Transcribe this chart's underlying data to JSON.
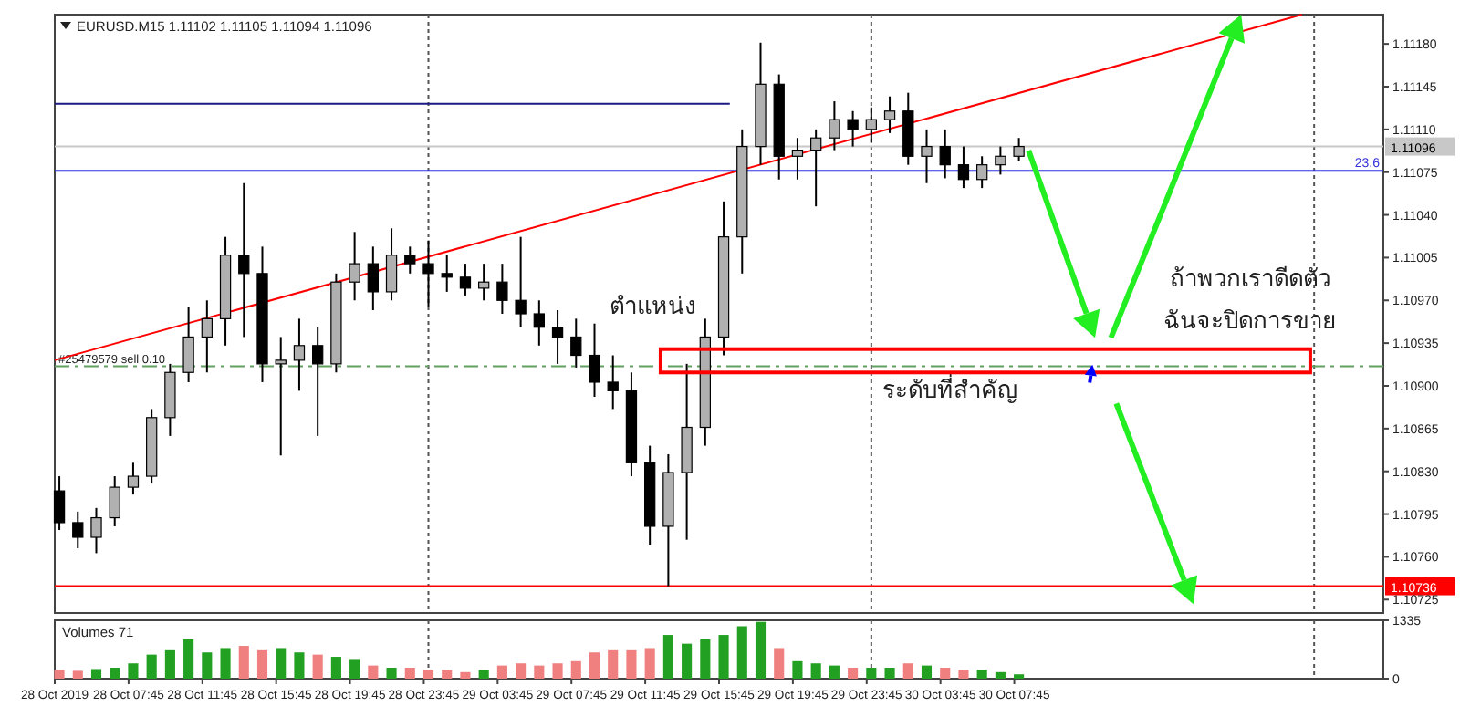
{
  "chart_data": [
    {
      "type": "candlestick",
      "title": "EURUSD.M15  1.11102 1.11105 1.11094 1.11096",
      "x": [
        "2019-10-28T04:00",
        "2019-10-28T05:00",
        "2019-10-28T06:00",
        "2019-10-28T07:00",
        "2019-10-28T08:00",
        "2019-10-28T09:00",
        "2019-10-28T10:00",
        "2019-10-28T11:00",
        "2019-10-28T12:00",
        "2019-10-28T13:00",
        "2019-10-28T14:00",
        "2019-10-28T15:00",
        "2019-10-28T16:00",
        "2019-10-28T17:00",
        "2019-10-28T18:00",
        "2019-10-28T19:00",
        "2019-10-28T20:00",
        "2019-10-28T21:00",
        "2019-10-28T22:00",
        "2019-10-28T23:00",
        "2019-10-29T00:00",
        "2019-10-29T01:00",
        "2019-10-29T02:00",
        "2019-10-29T03:00",
        "2019-10-29T04:00",
        "2019-10-29T05:00",
        "2019-10-29T06:00",
        "2019-10-29T07:00",
        "2019-10-29T08:00",
        "2019-10-29T09:00",
        "2019-10-29T10:00",
        "2019-10-29T11:00",
        "2019-10-29T12:00",
        "2019-10-29T13:00",
        "2019-10-29T14:00",
        "2019-10-29T15:00",
        "2019-10-29T16:00",
        "2019-10-29T17:00",
        "2019-10-29T18:00",
        "2019-10-29T19:00",
        "2019-10-29T20:00",
        "2019-10-29T21:00",
        "2019-10-29T22:00",
        "2019-10-29T23:00",
        "2019-10-30T00:00",
        "2019-10-30T01:00",
        "2019-10-30T02:00",
        "2019-10-30T03:00",
        "2019-10-30T04:00",
        "2019-10-30T05:00",
        "2019-10-30T06:00",
        "2019-10-30T07:00",
        "2019-10-30T08:00"
      ],
      "ohlc": [
        [
          1.10814,
          1.10826,
          1.10782,
          1.10788
        ],
        [
          1.10788,
          1.10797,
          1.10767,
          1.10776
        ],
        [
          1.10776,
          1.108,
          1.10763,
          1.10792
        ],
        [
          1.10792,
          1.10826,
          1.10785,
          1.10817
        ],
        [
          1.10817,
          1.10837,
          1.10811,
          1.10826
        ],
        [
          1.10826,
          1.10881,
          1.1082,
          1.10874
        ],
        [
          1.10874,
          1.10918,
          1.10859,
          1.10911
        ],
        [
          1.10911,
          1.10965,
          1.10903,
          1.1094
        ],
        [
          1.1094,
          1.1097,
          1.10911,
          1.10955
        ],
        [
          1.10955,
          1.11022,
          1.10933,
          1.11007
        ],
        [
          1.11007,
          1.11066,
          1.1094,
          1.10992
        ],
        [
          1.10992,
          1.11014,
          1.10903,
          1.10918
        ],
        [
          1.10918,
          1.1094,
          1.10843,
          1.10921
        ],
        [
          1.10921,
          1.10955,
          1.10896,
          1.10933
        ],
        [
          1.10933,
          1.10948,
          1.10859,
          1.10918
        ],
        [
          1.10918,
          1.10992,
          1.10911,
          1.10985
        ],
        [
          1.10985,
          1.11026,
          1.1097,
          1.11
        ],
        [
          1.11,
          1.11014,
          1.10962,
          1.10977
        ],
        [
          1.10977,
          1.11029,
          1.1097,
          1.11007
        ],
        [
          1.11007,
          1.11014,
          1.10992,
          1.11
        ],
        [
          1.11,
          1.11019,
          1.10965,
          1.10992
        ],
        [
          1.10992,
          1.11007,
          1.10977,
          1.10989
        ],
        [
          1.10989,
          1.11,
          1.10974,
          1.1098
        ],
        [
          1.1098,
          1.11,
          1.1097,
          1.10985
        ],
        [
          1.10985,
          1.11,
          1.10959,
          1.1097
        ],
        [
          1.1097,
          1.11022,
          1.10948,
          1.10959
        ],
        [
          1.10959,
          1.1097,
          1.10933,
          1.10948
        ],
        [
          1.10948,
          1.10962,
          1.10918,
          1.1094
        ],
        [
          1.1094,
          1.10955,
          1.10915,
          1.10925
        ],
        [
          1.10925,
          1.10951,
          1.10891,
          1.10903
        ],
        [
          1.10903,
          1.10925,
          1.10881,
          1.10896
        ],
        [
          1.10896,
          1.10911,
          1.10826,
          1.10837
        ],
        [
          1.10837,
          1.10851,
          1.1077,
          1.10785
        ],
        [
          1.10785,
          1.10844,
          1.10736,
          1.10829
        ],
        [
          1.10829,
          1.10918,
          1.10774,
          1.10866
        ],
        [
          1.10866,
          1.10955,
          1.10851,
          1.1094
        ],
        [
          1.1094,
          1.11051,
          1.10925,
          1.11022
        ],
        [
          1.11022,
          1.1111,
          1.10992,
          1.11096
        ],
        [
          1.11096,
          1.11181,
          1.11081,
          1.11147
        ],
        [
          1.11147,
          1.11155,
          1.11069,
          1.11088
        ],
        [
          1.11088,
          1.11103,
          1.11069,
          1.11093
        ],
        [
          1.11093,
          1.1111,
          1.11047,
          1.11103
        ],
        [
          1.11103,
          1.11133,
          1.11093,
          1.11118
        ],
        [
          1.11118,
          1.11125,
          1.11096,
          1.1111
        ],
        [
          1.1111,
          1.11128,
          1.11099,
          1.11118
        ],
        [
          1.11118,
          1.11137,
          1.11107,
          1.11125
        ],
        [
          1.11125,
          1.1114,
          1.11081,
          1.11088
        ],
        [
          1.11088,
          1.1111,
          1.11066,
          1.11096
        ],
        [
          1.11096,
          1.1111,
          1.1107,
          1.11081
        ],
        [
          1.11081,
          1.11096,
          1.11062,
          1.11069
        ],
        [
          1.11069,
          1.11088,
          1.11062,
          1.11081
        ],
        [
          1.11081,
          1.11096,
          1.11073,
          1.11088
        ],
        [
          1.11088,
          1.11103,
          1.11084,
          1.11096
        ]
      ],
      "series": [
        {
          "type": "line",
          "color": "#ff0000",
          "x": [
            "2019-10-28T03:45",
            "2019-10-30T23:20"
          ],
          "values": [
            1.10921,
            1.11204
          ]
        },
        {
          "type": "line",
          "color": "#1a1a80",
          "x": [
            "2019-10-28T03:45",
            "2019-10-29T16:20"
          ],
          "values": [
            1.11131,
            1.11131
          ]
        }
      ],
      "xlim": [
        "2019-10-28T03:45",
        "2019-10-31T03:45"
      ],
      "ylim": [
        1.10714,
        1.11204
      ],
      "yticks": [
        {
          "value": 1.1118,
          "label": "1.11180"
        },
        {
          "value": 1.11145,
          "label": "1.11145"
        },
        {
          "value": 1.1111,
          "label": "1.11110"
        },
        {
          "value": 1.11075,
          "label": "1.11075"
        },
        {
          "value": 1.1104,
          "label": "1.11040"
        },
        {
          "value": 1.11005,
          "label": "1.11005"
        },
        {
          "value": 1.1097,
          "label": "1.10970"
        },
        {
          "value": 1.10935,
          "label": "1.10935"
        },
        {
          "value": 1.109,
          "label": "1.10900"
        },
        {
          "value": 1.10865,
          "label": "1.10865"
        },
        {
          "value": 1.1083,
          "label": "1.10830"
        },
        {
          "value": 1.10795,
          "label": "1.10795"
        },
        {
          "value": 1.1076,
          "label": "1.10760"
        },
        {
          "value": 1.10725,
          "label": "1.10725"
        }
      ],
      "tick_labels": "y",
      "ref_lines": [
        {
          "axis": "x",
          "value": "2019-10-29T00:00",
          "color": "#555555",
          "line_style": "dotted"
        },
        {
          "axis": "x",
          "value": "2019-10-30T00:00",
          "color": "#555555",
          "line_style": "dotted"
        },
        {
          "axis": "x",
          "value": "2019-10-31T00:00",
          "color": "#555555",
          "line_style": "dotted"
        },
        {
          "axis": "y",
          "value": 1.11096,
          "label": "1.11096",
          "color": "#c8c8c8",
          "line_style": "solid"
        },
        {
          "axis": "y",
          "value": 1.11076,
          "color": "#3333dd",
          "line_style": "solid"
        },
        {
          "axis": "y",
          "value": 1.10736,
          "label": "1.10736",
          "color": "#ff0000",
          "line_style": "solid"
        },
        {
          "axis": "y",
          "value": 1.10916,
          "label": "#25479579 sell 0.10",
          "color": "#60a060",
          "line_style": "dashed"
        }
      ],
      "annotations": [
        "ตำแหน่ง",
        "ระดับที่สำคัญ",
        "ถ้าพวกเราดีดตัว",
        "ฉันจะปิดการขาย",
        {
          "text": "23.6",
          "x": "2019-10-31T03:45",
          "y": 1.11076
        }
      ]
    },
    {
      "type": "bar",
      "title": "Volumes 71",
      "x": [
        "2019-10-28T04:00",
        "2019-10-28T05:00",
        "2019-10-28T06:00",
        "2019-10-28T07:00",
        "2019-10-28T08:00",
        "2019-10-28T09:00",
        "2019-10-28T10:00",
        "2019-10-28T11:00",
        "2019-10-28T12:00",
        "2019-10-28T13:00",
        "2019-10-28T14:00",
        "2019-10-28T15:00",
        "2019-10-28T16:00",
        "2019-10-28T17:00",
        "2019-10-28T18:00",
        "2019-10-28T19:00",
        "2019-10-28T20:00",
        "2019-10-28T21:00",
        "2019-10-28T22:00",
        "2019-10-28T23:00",
        "2019-10-29T00:00",
        "2019-10-29T01:00",
        "2019-10-29T02:00",
        "2019-10-29T03:00",
        "2019-10-29T04:00",
        "2019-10-29T05:00",
        "2019-10-29T06:00",
        "2019-10-29T07:00",
        "2019-10-29T08:00",
        "2019-10-29T09:00",
        "2019-10-29T10:00",
        "2019-10-29T11:00",
        "2019-10-29T12:00",
        "2019-10-29T13:00",
        "2019-10-29T14:00",
        "2019-10-29T15:00",
        "2019-10-29T16:00",
        "2019-10-29T17:00",
        "2019-10-29T18:00",
        "2019-10-29T19:00",
        "2019-10-29T20:00",
        "2019-10-29T21:00",
        "2019-10-29T22:00",
        "2019-10-29T23:00",
        "2019-10-30T00:00",
        "2019-10-30T01:00",
        "2019-10-30T02:00",
        "2019-10-30T03:00",
        "2019-10-30T04:00",
        "2019-10-30T05:00",
        "2019-10-30T06:00",
        "2019-10-30T07:00",
        "2019-10-30T08:00"
      ],
      "values": [
        200,
        180,
        220,
        250,
        350,
        550,
        650,
        900,
        600,
        700,
        750,
        650,
        700,
        600,
        550,
        500,
        450,
        300,
        250,
        250,
        200,
        200,
        150,
        200,
        300,
        350,
        300,
        350,
        400,
        600,
        650,
        650,
        700,
        1000,
        800,
        900,
        1000,
        1200,
        1300,
        700,
        400,
        350,
        300,
        250,
        250,
        250,
        350,
        300,
        250,
        200,
        200,
        150,
        100
      ],
      "colors": [
        "#f08080",
        "#f08080",
        "#22a022",
        "#22a022",
        "#22a022",
        "#22a022",
        "#22a022",
        "#22a022",
        "#22a022",
        "#22a022",
        "#f08080",
        "#f08080",
        "#22a022",
        "#22a022",
        "#f08080",
        "#22a022",
        "#22a022",
        "#f08080",
        "#22a022",
        "#f08080",
        "#f08080",
        "#f08080",
        "#f08080",
        "#22a022",
        "#f08080",
        "#f08080",
        "#f08080",
        "#f08080",
        "#f08080",
        "#f08080",
        "#f08080",
        "#f08080",
        "#f08080",
        "#22a022",
        "#22a022",
        "#22a022",
        "#22a022",
        "#22a022",
        "#22a022",
        "#f08080",
        "#22a022",
        "#22a022",
        "#22a022",
        "#f08080",
        "#22a022",
        "#22a022",
        "#f08080",
        "#22a022",
        "#f08080",
        "#f08080",
        "#22a022",
        "#22a022",
        "#22a022"
      ],
      "xlim": [
        "2019-10-28T03:45",
        "2019-10-31T03:45"
      ],
      "ylim": [
        0,
        1335
      ],
      "yticks": [
        0,
        1335
      ],
      "xticks": [
        {
          "value": "2019-10-28T03:45",
          "label": "28 Oct 2019"
        },
        {
          "value": "2019-10-28T07:45",
          "label": "28 Oct 07:45"
        },
        {
          "value": "2019-10-28T11:45",
          "label": "28 Oct 11:45"
        },
        {
          "value": "2019-10-28T15:45",
          "label": "28 Oct 15:45"
        },
        {
          "value": "2019-10-28T19:45",
          "label": "28 Oct 19:45"
        },
        {
          "value": "2019-10-28T23:45",
          "label": "28 Oct 23:45"
        },
        {
          "value": "2019-10-29T03:45",
          "label": "29 Oct 03:45"
        },
        {
          "value": "2019-10-29T07:45",
          "label": "29 Oct 07:45"
        },
        {
          "value": "2019-10-29T11:45",
          "label": "29 Oct 11:45"
        },
        {
          "value": "2019-10-29T15:45",
          "label": "29 Oct 15:45"
        },
        {
          "value": "2019-10-29T19:45",
          "label": "29 Oct 19:45"
        },
        {
          "value": "2019-10-29T23:45",
          "label": "29 Oct 23:45"
        },
        {
          "value": "2019-10-30T03:45",
          "label": "30 Oct 03:45"
        },
        {
          "value": "2019-10-30T07:45",
          "label": "30 Oct 07:45"
        }
      ],
      "ref_lines": [
        {
          "axis": "x",
          "value": "2019-10-29T00:00",
          "color": "#555555",
          "line_style": "dotted"
        },
        {
          "axis": "x",
          "value": "2019-10-30T00:00",
          "color": "#555555",
          "line_style": "dotted"
        },
        {
          "axis": "x",
          "value": "2019-10-31T00:00",
          "color": "#555555",
          "line_style": "dotted"
        }
      ]
    }
  ]
}
